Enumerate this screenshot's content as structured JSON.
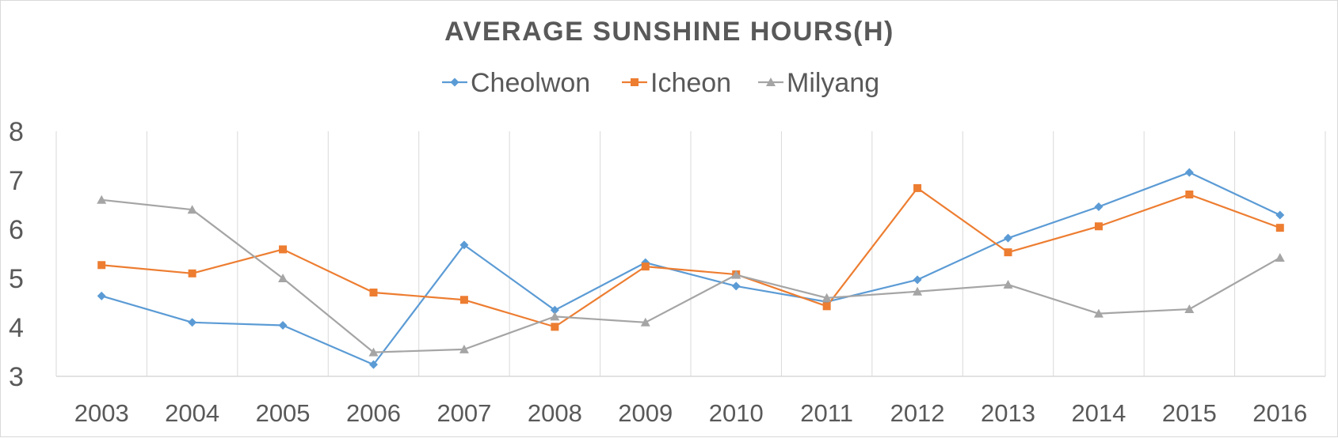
{
  "chart_data": {
    "type": "line",
    "title": "AVERAGE SUNSHINE HOURS(H)",
    "xlabel": "",
    "ylabel": "",
    "categories": [
      "2003",
      "2004",
      "2005",
      "2006",
      "2007",
      "2008",
      "2009",
      "2010",
      "2011",
      "2012",
      "2013",
      "2014",
      "2015",
      "2016"
    ],
    "ylim": [
      3,
      8
    ],
    "yticks": [
      "3",
      "4",
      "5",
      "6",
      "7",
      "8"
    ],
    "grid": {
      "vertical": true,
      "horizontal": false
    },
    "legend_position": "top",
    "series": [
      {
        "name": "Cheolwon",
        "color": "#5b9bd5",
        "marker": "diamond",
        "values": [
          4.64,
          4.1,
          4.04,
          3.24,
          5.68,
          4.35,
          5.32,
          4.84,
          4.52,
          4.97,
          5.82,
          6.46,
          7.16,
          6.29
        ]
      },
      {
        "name": "Icheon",
        "color": "#ed7d31",
        "marker": "square",
        "values": [
          5.27,
          5.1,
          5.59,
          4.71,
          4.56,
          4.01,
          5.24,
          5.08,
          4.43,
          6.84,
          5.53,
          6.06,
          6.71,
          6.03
        ]
      },
      {
        "name": "Milyang",
        "color": "#a5a5a5",
        "marker": "triangle",
        "values": [
          6.6,
          6.4,
          5.0,
          3.49,
          3.55,
          4.22,
          4.1,
          5.07,
          4.6,
          4.73,
          4.87,
          4.28,
          4.37,
          5.42
        ]
      }
    ]
  }
}
